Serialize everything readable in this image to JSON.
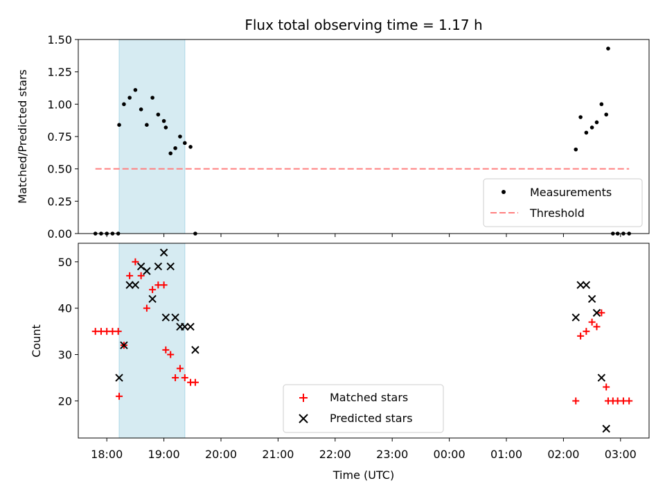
{
  "chart_data": [
    {
      "type": "scatter",
      "title": "Flux total observing time = 1.17 h",
      "ylabel": "Matched/Predicted stars",
      "xlabel": "",
      "ylim": [
        0,
        1.5
      ],
      "yticks": [
        "0.00",
        "0.25",
        "0.50",
        "0.75",
        "1.00",
        "1.25",
        "1.50"
      ],
      "grid": false,
      "legend_position": "lower-right",
      "highlight_span": {
        "x": [
          "18:13",
          "19:22"
        ],
        "color": "#add8e6"
      },
      "series": [
        {
          "name": "Measurements",
          "marker": "dot",
          "color": "#000000",
          "x": [
            "17:48",
            "17:54",
            "18:00",
            "18:06",
            "18:12",
            "18:13",
            "18:18",
            "18:24",
            "18:30",
            "18:36",
            "18:42",
            "18:48",
            "18:54",
            "19:00",
            "19:02",
            "19:07",
            "19:12",
            "19:17",
            "19:22",
            "19:28",
            "19:33",
            "02:13",
            "02:18",
            "02:24",
            "02:30",
            "02:35",
            "02:40",
            "02:45",
            "02:47",
            "02:52",
            "02:57",
            "03:03",
            "03:09"
          ],
          "y": [
            0,
            0,
            0,
            0,
            0,
            0.84,
            1.0,
            1.05,
            1.11,
            0.96,
            0.84,
            1.05,
            0.92,
            0.87,
            0.82,
            0.62,
            0.66,
            0.75,
            0.7,
            0.67,
            0,
            0.65,
            0.9,
            0.78,
            0.82,
            0.86,
            1.0,
            0.92,
            1.43,
            0,
            0,
            0,
            0
          ]
        },
        {
          "name": "Threshold",
          "type": "line",
          "style": "dashed",
          "color": "#ff7f7f",
          "x": [
            "17:48",
            "03:09"
          ],
          "y": [
            0.5,
            0.5
          ]
        }
      ]
    },
    {
      "type": "scatter",
      "title": "",
      "ylabel": "Count",
      "xlabel": "Time (UTC)",
      "ylim": [
        12,
        54
      ],
      "yticks": [
        "20",
        "30",
        "40",
        "50"
      ],
      "xlim": [
        "17:30",
        "03:30"
      ],
      "xticks": [
        "18:00",
        "19:00",
        "20:00",
        "21:00",
        "22:00",
        "23:00",
        "00:00",
        "01:00",
        "02:00",
        "03:00"
      ],
      "grid": false,
      "legend_position": "lower-center",
      "highlight_span": {
        "x": [
          "18:13",
          "19:22"
        ],
        "color": "#add8e6"
      },
      "series": [
        {
          "name": "Matched stars",
          "marker": "plus",
          "color": "#ff0000",
          "x": [
            "17:48",
            "17:54",
            "18:00",
            "18:06",
            "18:12",
            "18:13",
            "18:18",
            "18:24",
            "18:30",
            "18:36",
            "18:42",
            "18:48",
            "18:54",
            "19:00",
            "19:02",
            "19:07",
            "19:12",
            "19:17",
            "19:22",
            "19:28",
            "19:33",
            "02:13",
            "02:18",
            "02:24",
            "02:30",
            "02:35",
            "02:40",
            "02:45",
            "02:47",
            "02:52",
            "02:57",
            "03:03",
            "03:09"
          ],
          "y": [
            35,
            35,
            35,
            35,
            35,
            21,
            32,
            47,
            50,
            47,
            40,
            44,
            45,
            45,
            31,
            30,
            25,
            27,
            25,
            24,
            24,
            20,
            34,
            35,
            37,
            36,
            39,
            23,
            20,
            20,
            20,
            20,
            20
          ]
        },
        {
          "name": "Predicted stars",
          "marker": "x",
          "color": "#000000",
          "x": [
            "18:13",
            "18:18",
            "18:24",
            "18:30",
            "18:36",
            "18:42",
            "18:48",
            "18:54",
            "19:00",
            "19:02",
            "19:07",
            "19:12",
            "19:17",
            "19:22",
            "19:28",
            "19:33",
            "02:13",
            "02:18",
            "02:24",
            "02:30",
            "02:35",
            "02:40",
            "02:45"
          ],
          "y": [
            25,
            32,
            45,
            45,
            49,
            48,
            42,
            49,
            52,
            38,
            49,
            38,
            36,
            36,
            36,
            31,
            38,
            45,
            45,
            42,
            39,
            25,
            14
          ]
        }
      ]
    }
  ]
}
